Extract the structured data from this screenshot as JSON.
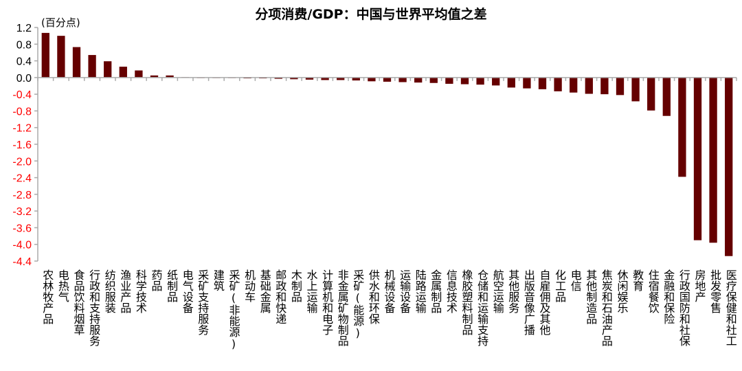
{
  "chart_data": {
    "type": "bar",
    "title": "分项消费/GDP：中国与世界平均值之差",
    "ylabel": "(百分点)",
    "xlabel": "",
    "ylim": [
      -4.4,
      1.2
    ],
    "yticks": [
      1.2,
      0.8,
      0.4,
      0.0,
      -0.4,
      -0.8,
      -1.2,
      -1.6,
      -2.0,
      -2.4,
      -2.8,
      -3.2,
      -3.6,
      -4.0,
      -4.4
    ],
    "ytick_labels": [
      "1.2",
      "0.8",
      "0.4",
      "0.0",
      "-0.4",
      "-0.8",
      "-1.2",
      "-1.6",
      "-2.0",
      "-2.4",
      "-2.8",
      "-3.2",
      "-3.6",
      "-4.0",
      "-4.4"
    ],
    "grid": false,
    "colors": {
      "bar": "#650000",
      "negative_tick": "#ff0000",
      "positive_tick": "#000000"
    },
    "categories": [
      "农林牧产品",
      "电热气",
      "食品饮料烟草",
      "行政和支持服务",
      "纺织服装",
      "渔业产品",
      "科学技术",
      "药品",
      "纸制品",
      "电气设备",
      "采矿支持服务",
      "建筑",
      "采矿(非能源)",
      "机动车",
      "基础金属",
      "邮政和快递",
      "木制品",
      "水上运输",
      "计算机和电子",
      "非金属矿物制品",
      "采矿(能源)",
      "供水和环保",
      "机械设备",
      "运输设备",
      "陆路运输",
      "金属制品",
      "信息技术",
      "橡胶塑料制品",
      "仓储和运输支持",
      "航空运输",
      "其他服务",
      "出版音像广播",
      "自雇佣及其他",
      "化工品",
      "电信",
      "其他制造品",
      "焦炭和石油产品",
      "休闲娱乐",
      "教育",
      "住宿餐饮",
      "金融和保险",
      "行政国防和社保",
      "房地产",
      "批发零售",
      "医疗保健和社工"
    ],
    "values": [
      1.07,
      1.0,
      0.73,
      0.54,
      0.39,
      0.26,
      0.17,
      0.05,
      0.05,
      0.01,
      0.0,
      -0.01,
      -0.01,
      -0.02,
      -0.02,
      -0.03,
      -0.04,
      -0.05,
      -0.06,
      -0.06,
      -0.07,
      -0.09,
      -0.1,
      -0.11,
      -0.12,
      -0.13,
      -0.15,
      -0.16,
      -0.17,
      -0.19,
      -0.24,
      -0.26,
      -0.28,
      -0.33,
      -0.36,
      -0.39,
      -0.4,
      -0.42,
      -0.57,
      -0.79,
      -0.92,
      -2.38,
      -3.9,
      -3.96,
      -4.28
    ]
  }
}
